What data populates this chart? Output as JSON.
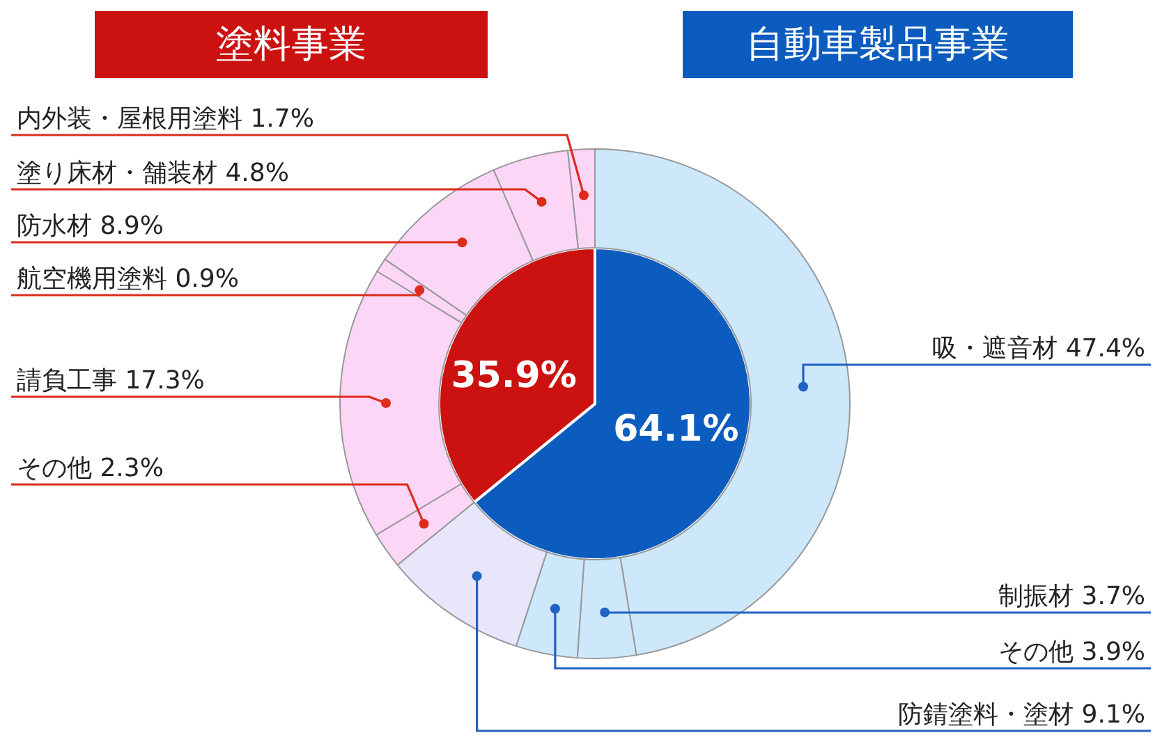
{
  "chart_data": [
    {
      "type": "pie",
      "categories": [
        "自動車製品事業",
        "塗料事業"
      ],
      "values": [
        64.1,
        35.9
      ],
      "colors": [
        "#0b5cbe",
        "#cc1111"
      ],
      "value_labels": [
        "64.1%",
        "35.9%"
      ],
      "legend": "top"
    },
    {
      "type": "donut",
      "categories": [
        "吸・遮音材",
        "制振材",
        "その他",
        "防錆塗料・塗材",
        "その他",
        "請負工事",
        "航空機用塗料",
        "防水材",
        "塗り床材・舗装材",
        "内外装・屋根用塗料"
      ],
      "values": [
        47.4,
        3.7,
        3.9,
        9.1,
        2.3,
        17.3,
        0.9,
        8.9,
        4.8,
        1.7
      ],
      "colors": [
        "#cde7fb",
        "#cde7fb",
        "#cde7fb",
        "#e8e6fb",
        "#fcd6f6",
        "#fcd6f6",
        "#fcd6f6",
        "#fcd6f6",
        "#fcd6f6",
        "#fcd6f6"
      ],
      "value_labels": [
        "47.4%",
        "3.7%",
        "3.9%",
        "9.1%",
        "2.3%",
        "17.3%",
        "0.9%",
        "8.9%",
        "4.8%",
        "1.7%"
      ]
    }
  ]
}
